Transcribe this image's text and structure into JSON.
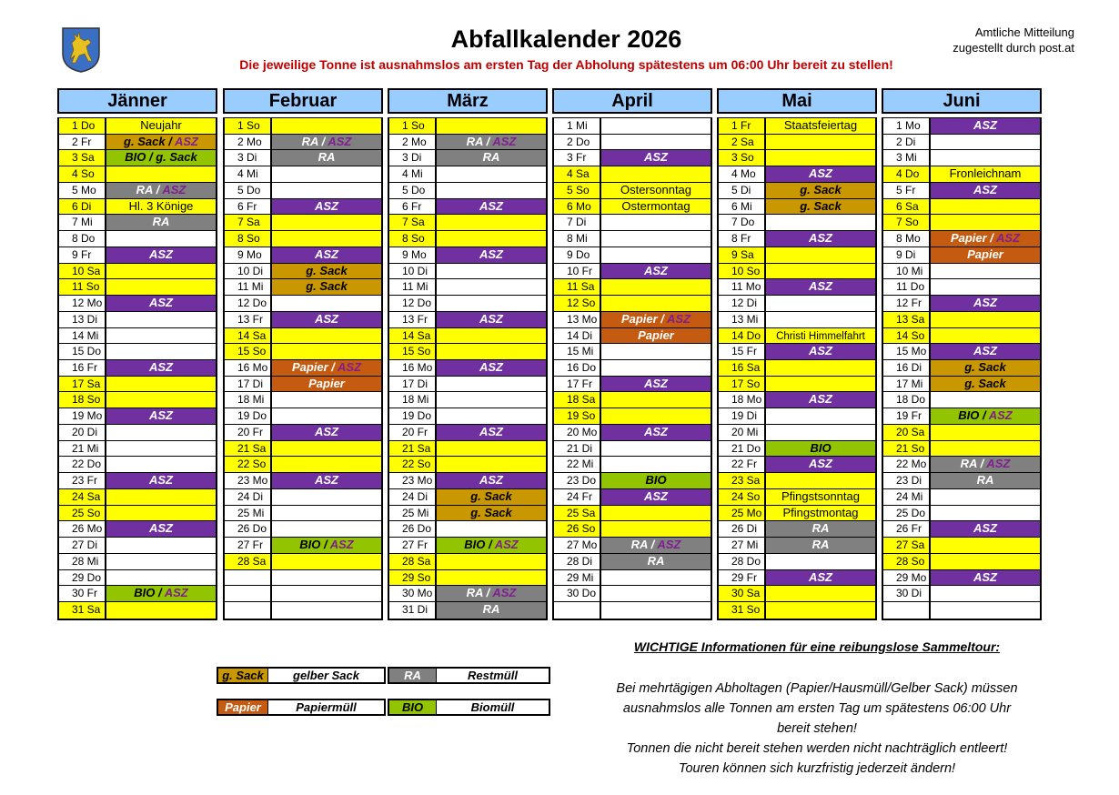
{
  "header": {
    "title": "Abfallkalender 2026",
    "subtitle": "Die jeweilige Tonne ist ausnahmslos am ersten Tag der Abholung spätestens um 06:00 Uhr bereit zu stellen!",
    "notice_line1": "Amtliche Mitteilung",
    "notice_line2": "zugestellt durch post.at",
    "crest_icon": "coat-of-arms-deer"
  },
  "colors": {
    "weekend_holiday": "#FFFF00",
    "month_header": "#99CCFF",
    "subtitle": "#C00000",
    "ASZ": "#7030A0",
    "RA": "#808080",
    "g. Sack": "#C99700",
    "Papier": "#C55A11",
    "BIO": "#92C400",
    "asz_text": "#7F1F8F"
  },
  "months": [
    {
      "name": "Jänner",
      "days": [
        [
          "1 Do",
          "Neujahr"
        ],
        [
          "2 Fr",
          "g. Sack",
          "ASZ"
        ],
        [
          "3 Sa",
          "BIO",
          "g. Sack"
        ],
        [
          "4 So"
        ],
        [
          "5 Mo",
          "RA",
          "ASZ"
        ],
        [
          "6 Di",
          "Hl. 3 Könige"
        ],
        [
          "7 Mi",
          "RA"
        ],
        [
          "8 Do"
        ],
        [
          "9 Fr",
          "ASZ"
        ],
        [
          "10 Sa"
        ],
        [
          "11 So"
        ],
        [
          "12 Mo",
          "ASZ"
        ],
        [
          "13 Di"
        ],
        [
          "14 Mi"
        ],
        [
          "15 Do"
        ],
        [
          "16 Fr",
          "ASZ"
        ],
        [
          "17 Sa"
        ],
        [
          "18 So"
        ],
        [
          "19 Mo",
          "ASZ"
        ],
        [
          "20 Di"
        ],
        [
          "21 Mi"
        ],
        [
          "22 Do"
        ],
        [
          "23 Fr",
          "ASZ"
        ],
        [
          "24 Sa"
        ],
        [
          "25 So"
        ],
        [
          "26 Mo",
          "ASZ"
        ],
        [
          "27 Di"
        ],
        [
          "28 Mi"
        ],
        [
          "29 Do"
        ],
        [
          "30 Fr",
          "BIO",
          "ASZ"
        ],
        [
          "31 Sa"
        ]
      ]
    },
    {
      "name": "Februar",
      "days": [
        [
          "1 So"
        ],
        [
          "2 Mo",
          "RA",
          "ASZ"
        ],
        [
          "3 Di",
          "RA"
        ],
        [
          "4 Mi"
        ],
        [
          "5 Do"
        ],
        [
          "6 Fr",
          "ASZ"
        ],
        [
          "7 Sa"
        ],
        [
          "8 So"
        ],
        [
          "9 Mo",
          "ASZ"
        ],
        [
          "10 Di",
          "g. Sack"
        ],
        [
          "11 Mi",
          "g. Sack"
        ],
        [
          "12 Do"
        ],
        [
          "13 Fr",
          "ASZ"
        ],
        [
          "14 Sa"
        ],
        [
          "15 So"
        ],
        [
          "16 Mo",
          "Papier",
          "ASZ"
        ],
        [
          "17 Di",
          "Papier"
        ],
        [
          "18 Mi"
        ],
        [
          "19 Do"
        ],
        [
          "20 Fr",
          "ASZ"
        ],
        [
          "21 Sa"
        ],
        [
          "22 So"
        ],
        [
          "23 Mo",
          "ASZ"
        ],
        [
          "24 Di"
        ],
        [
          "25 Mi"
        ],
        [
          "26 Do"
        ],
        [
          "27 Fr",
          "BIO",
          "ASZ"
        ],
        [
          "28 Sa"
        ]
      ]
    },
    {
      "name": "März",
      "days": [
        [
          "1 So"
        ],
        [
          "2 Mo",
          "RA",
          "ASZ"
        ],
        [
          "3 Di",
          "RA"
        ],
        [
          "4 Mi"
        ],
        [
          "5 Do"
        ],
        [
          "6 Fr",
          "ASZ"
        ],
        [
          "7 Sa"
        ],
        [
          "8 So"
        ],
        [
          "9 Mo",
          "ASZ"
        ],
        [
          "10 Di"
        ],
        [
          "11 Mi"
        ],
        [
          "12 Do"
        ],
        [
          "13 Fr",
          "ASZ"
        ],
        [
          "14 Sa"
        ],
        [
          "15 So"
        ],
        [
          "16 Mo",
          "ASZ"
        ],
        [
          "17 Di"
        ],
        [
          "18 Mi"
        ],
        [
          "19 Do"
        ],
        [
          "20 Fr",
          "ASZ"
        ],
        [
          "21 Sa"
        ],
        [
          "22 So"
        ],
        [
          "23 Mo",
          "ASZ"
        ],
        [
          "24 Di",
          "g. Sack"
        ],
        [
          "25 Mi",
          "g. Sack"
        ],
        [
          "26 Do"
        ],
        [
          "27 Fr",
          "BIO",
          "ASZ"
        ],
        [
          "28 Sa"
        ],
        [
          "29 So"
        ],
        [
          "30 Mo",
          "RA",
          "ASZ"
        ],
        [
          "31 Di",
          "RA"
        ]
      ]
    },
    {
      "name": "April",
      "days": [
        [
          "1 Mi"
        ],
        [
          "2 Do"
        ],
        [
          "3 Fr",
          "ASZ"
        ],
        [
          "4 Sa"
        ],
        [
          "5 So",
          "Ostersonntag"
        ],
        [
          "6 Mo",
          "Ostermontag"
        ],
        [
          "7 Di"
        ],
        [
          "8 Mi"
        ],
        [
          "9 Do"
        ],
        [
          "10 Fr",
          "ASZ"
        ],
        [
          "11 Sa"
        ],
        [
          "12 So"
        ],
        [
          "13 Mo",
          "Papier",
          "ASZ"
        ],
        [
          "14 Di",
          "Papier"
        ],
        [
          "15 Mi"
        ],
        [
          "16 Do"
        ],
        [
          "17 Fr",
          "ASZ"
        ],
        [
          "18 Sa"
        ],
        [
          "19 So"
        ],
        [
          "20 Mo",
          "ASZ"
        ],
        [
          "21 Di"
        ],
        [
          "22 Mi"
        ],
        [
          "23 Do",
          "BIO"
        ],
        [
          "24 Fr",
          "ASZ"
        ],
        [
          "25 Sa"
        ],
        [
          "26 So"
        ],
        [
          "27 Mo",
          "RA",
          "ASZ"
        ],
        [
          "28 Di",
          "RA"
        ],
        [
          "29 Mi"
        ],
        [
          "30 Do"
        ]
      ]
    },
    {
      "name": "Mai",
      "days": [
        [
          "1 Fr",
          "Staatsfeiertag"
        ],
        [
          "2 Sa"
        ],
        [
          "3 So"
        ],
        [
          "4 Mo",
          "ASZ"
        ],
        [
          "5 Di",
          "g. Sack"
        ],
        [
          "6 Mi",
          "g. Sack"
        ],
        [
          "7 Do"
        ],
        [
          "8 Fr",
          "ASZ"
        ],
        [
          "9 Sa"
        ],
        [
          "10 So"
        ],
        [
          "11 Mo",
          "ASZ"
        ],
        [
          "12 Di"
        ],
        [
          "13 Mi"
        ],
        [
          "14 Do",
          "Christi Himmelfahrt"
        ],
        [
          "15 Fr",
          "ASZ"
        ],
        [
          "16 Sa"
        ],
        [
          "17 So"
        ],
        [
          "18 Mo",
          "ASZ"
        ],
        [
          "19 Di"
        ],
        [
          "20 Mi"
        ],
        [
          "21 Do",
          "BIO"
        ],
        [
          "22 Fr",
          "ASZ"
        ],
        [
          "23 Sa"
        ],
        [
          "24 So",
          "Pfingstsonntag"
        ],
        [
          "25 Mo",
          "Pfingstmontag"
        ],
        [
          "26 Di",
          "RA"
        ],
        [
          "27 Mi",
          "RA"
        ],
        [
          "28 Do"
        ],
        [
          "29 Fr",
          "ASZ"
        ],
        [
          "30 Sa"
        ],
        [
          "31 So"
        ]
      ]
    },
    {
      "name": "Juni",
      "days": [
        [
          "1 Mo",
          "ASZ"
        ],
        [
          "2 Di"
        ],
        [
          "3 Mi"
        ],
        [
          "4 Do",
          "Fronleichnam"
        ],
        [
          "5 Fr",
          "ASZ"
        ],
        [
          "6 Sa"
        ],
        [
          "7 So"
        ],
        [
          "8 Mo",
          "Papier",
          "ASZ"
        ],
        [
          "9 Di",
          "Papier"
        ],
        [
          "10 Mi"
        ],
        [
          "11 Do"
        ],
        [
          "12 Fr",
          "ASZ"
        ],
        [
          "13 Sa"
        ],
        [
          "14 So"
        ],
        [
          "15 Mo",
          "ASZ"
        ],
        [
          "16 Di",
          "g. Sack"
        ],
        [
          "17 Mi",
          "g. Sack"
        ],
        [
          "18 Do"
        ],
        [
          "19 Fr",
          "BIO",
          "ASZ"
        ],
        [
          "20 Sa"
        ],
        [
          "21 So"
        ],
        [
          "22 Mo",
          "RA",
          "ASZ"
        ],
        [
          "23 Di",
          "RA"
        ],
        [
          "24 Mi"
        ],
        [
          "25 Do"
        ],
        [
          "26 Fr",
          "ASZ"
        ],
        [
          "27 Sa"
        ],
        [
          "28 So"
        ],
        [
          "29 Mo",
          "ASZ"
        ],
        [
          "30 Di"
        ]
      ]
    }
  ],
  "legend": [
    {
      "code": "g. Sack",
      "label": "gelber Sack"
    },
    {
      "code": "RA",
      "label": "Restmüll"
    },
    {
      "code": "Papier",
      "label": "Papiermüll"
    },
    {
      "code": "BIO",
      "label": "Biomüll"
    }
  ],
  "info": {
    "heading": "WICHTIGE Informationen für eine reibungslose Sammeltour:",
    "lines": [
      "Bei mehrtägigen Abholtagen (Papier/Hausmüll/Gelber Sack) müssen",
      "ausnahmslos alle Tonnen am ersten Tag um spätestens 06:00 Uhr",
      "bereit stehen!",
      "Tonnen die nicht bereit stehen werden nicht nachträglich entleert!",
      "Touren können sich kurzfristig jederzeit ändern!"
    ]
  }
}
